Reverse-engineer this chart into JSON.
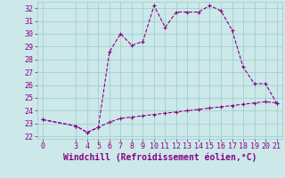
{
  "x": [
    0,
    3,
    4,
    5,
    6,
    7,
    8,
    9,
    10,
    11,
    12,
    13,
    14,
    15,
    16,
    17,
    18,
    19,
    20,
    21
  ],
  "y_line1": [
    23.3,
    22.8,
    22.3,
    22.7,
    28.6,
    30.0,
    29.1,
    29.4,
    32.2,
    30.5,
    31.7,
    31.7,
    31.7,
    32.2,
    31.8,
    30.3,
    27.4,
    26.1,
    26.1,
    24.6
  ],
  "y_line2": [
    23.3,
    22.8,
    22.3,
    22.7,
    23.1,
    23.4,
    23.5,
    23.6,
    23.7,
    23.8,
    23.9,
    24.0,
    24.1,
    24.2,
    24.3,
    24.4,
    24.5,
    24.6,
    24.7,
    24.6
  ],
  "color": "#880088",
  "bg_color": "#cce8e8",
  "grid_color": "#99cccc",
  "xlabel": "Windchill (Refroidissement éolien,°C)",
  "ylim": [
    21.8,
    32.5
  ],
  "xlim": [
    -0.5,
    21.5
  ],
  "yticks": [
    22,
    23,
    24,
    25,
    26,
    27,
    28,
    29,
    30,
    31,
    32
  ],
  "xticks": [
    0,
    3,
    4,
    5,
    6,
    7,
    8,
    9,
    10,
    11,
    12,
    13,
    14,
    15,
    16,
    17,
    18,
    19,
    20,
    21
  ],
  "font_size": 6.0,
  "xlabel_fontsize": 7.0,
  "line_width": 0.8,
  "marker_size": 3.5
}
